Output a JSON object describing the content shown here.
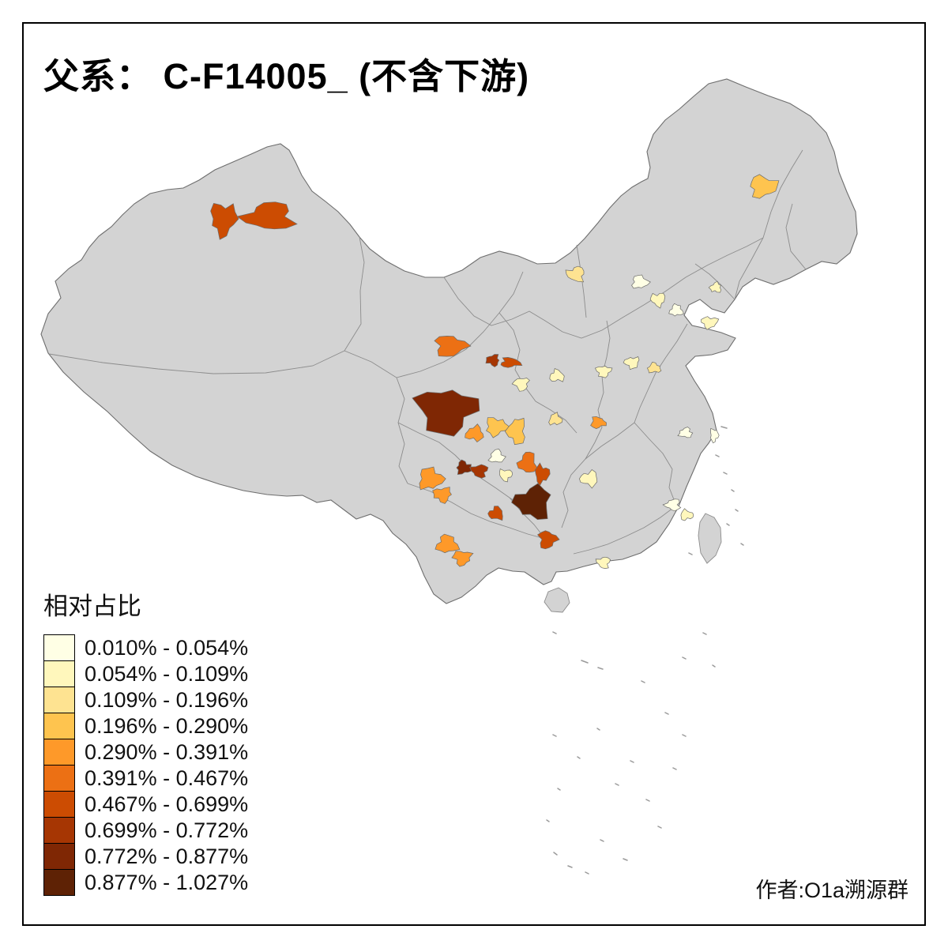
{
  "title": "父系： C-F14005_ (不含下游)",
  "attribution": "作者:O1a溯源群",
  "legend": {
    "title": "相对占比",
    "classes": [
      {
        "label": "0.010% - 0.054%",
        "color": "#FFFFE5"
      },
      {
        "label": "0.054% - 0.109%",
        "color": "#FFF7BC"
      },
      {
        "label": "0.109% - 0.196%",
        "color": "#FEE391"
      },
      {
        "label": "0.196% - 0.290%",
        "color": "#FEC44F"
      },
      {
        "label": "0.290% - 0.391%",
        "color": "#FE9929"
      },
      {
        "label": "0.391% - 0.467%",
        "color": "#EC7014"
      },
      {
        "label": "0.467% - 0.699%",
        "color": "#CC4C02"
      },
      {
        "label": "0.699% - 0.772%",
        "color": "#A63603"
      },
      {
        "label": "0.772% - 0.877%",
        "color": "#7F2704"
      },
      {
        "label": "0.877% - 1.027%",
        "color": "#5E2205"
      }
    ]
  },
  "map": {
    "base_color": "#D3D3D3",
    "boundary_color": "#8C8C8C",
    "outline_color": "#6E6E6E",
    "regions": [
      {
        "id": "region-01",
        "bucket": 7
      },
      {
        "id": "region-02",
        "bucket": 7
      },
      {
        "id": "region-03",
        "bucket": 4
      },
      {
        "id": "region-04",
        "bucket": 3
      },
      {
        "id": "region-05",
        "bucket": 1
      },
      {
        "id": "region-06",
        "bucket": 2
      },
      {
        "id": "region-07",
        "bucket": 1
      },
      {
        "id": "region-08",
        "bucket": 2
      },
      {
        "id": "region-09",
        "bucket": 2
      },
      {
        "id": "region-10",
        "bucket": 6
      },
      {
        "id": "region-11",
        "bucket": 8
      },
      {
        "id": "region-12",
        "bucket": 7
      },
      {
        "id": "region-13",
        "bucket": 2
      },
      {
        "id": "region-14",
        "bucket": 2
      },
      {
        "id": "region-15",
        "bucket": 9
      },
      {
        "id": "region-16",
        "bucket": 5
      },
      {
        "id": "region-17",
        "bucket": 4
      },
      {
        "id": "region-18",
        "bucket": 4
      },
      {
        "id": "region-19",
        "bucket": 9
      },
      {
        "id": "region-20",
        "bucket": 8
      },
      {
        "id": "region-21",
        "bucket": 1
      },
      {
        "id": "region-22",
        "bucket": 2
      },
      {
        "id": "region-23",
        "bucket": 6
      },
      {
        "id": "region-24",
        "bucket": 7
      },
      {
        "id": "region-25",
        "bucket": 10
      },
      {
        "id": "region-26",
        "bucket": 5
      },
      {
        "id": "region-27",
        "bucket": 5
      },
      {
        "id": "region-28",
        "bucket": 5
      },
      {
        "id": "region-29",
        "bucket": 5
      },
      {
        "id": "region-30",
        "bucket": 7
      },
      {
        "id": "region-31",
        "bucket": 7
      },
      {
        "id": "region-32",
        "bucket": 2
      },
      {
        "id": "region-33",
        "bucket": 5
      },
      {
        "id": "region-34",
        "bucket": 2
      },
      {
        "id": "region-35",
        "bucket": 3
      },
      {
        "id": "region-36",
        "bucket": 2
      },
      {
        "id": "region-37",
        "bucket": 1
      },
      {
        "id": "region-38",
        "bucket": 1
      },
      {
        "id": "region-39",
        "bucket": 1
      },
      {
        "id": "region-40",
        "bucket": 2
      },
      {
        "id": "region-41",
        "bucket": 2
      },
      {
        "id": "region-42",
        "bucket": 3
      }
    ]
  }
}
